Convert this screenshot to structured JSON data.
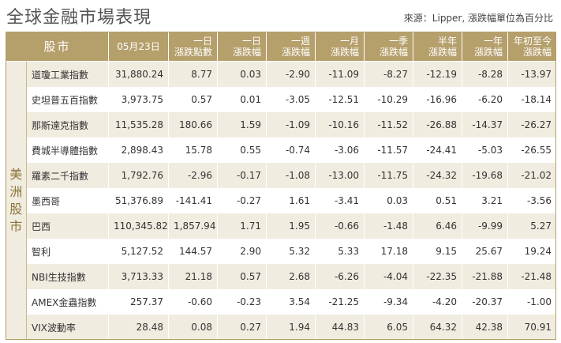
{
  "title": "全球金融市場表現",
  "source": "來源：Lipper, 漲跌幅單位為百分比",
  "headers": {
    "name": "股市",
    "date": "05月23日",
    "c1": [
      "一日",
      "漲跌點數"
    ],
    "c2": [
      "一日",
      "漲跌幅"
    ],
    "c3": [
      "一週",
      "漲跌幅"
    ],
    "c4": [
      "一月",
      "漲跌幅"
    ],
    "c5": [
      "一季",
      "漲跌幅"
    ],
    "c6": [
      "半年",
      "漲跌幅"
    ],
    "c7": [
      "一年",
      "漲跌幅"
    ],
    "c8": [
      "年初至今",
      "漲跌幅"
    ]
  },
  "region": [
    "美",
    "洲",
    "股",
    "市"
  ],
  "rows": [
    [
      "道瓊工業指數",
      "31,880.24",
      "8.77",
      "0.03",
      "-2.90",
      "-11.09",
      "-8.27",
      "-12.19",
      "-8.28",
      "-13.97"
    ],
    [
      "史坦普五百指數",
      "3,973.75",
      "0.57",
      "0.01",
      "-3.05",
      "-12.51",
      "-10.29",
      "-16.96",
      "-6.20",
      "-18.14"
    ],
    [
      "那斯達克指數",
      "11,535.28",
      "180.66",
      "1.59",
      "-1.09",
      "-10.16",
      "-11.52",
      "-26.88",
      "-14.37",
      "-26.27"
    ],
    [
      "費城半導體指數",
      "2,898.43",
      "15.78",
      "0.55",
      "-0.74",
      "-3.06",
      "-11.57",
      "-24.41",
      "-5.03",
      "-26.55"
    ],
    [
      "羅素二千指數",
      "1,792.76",
      "-2.96",
      "-0.17",
      "-1.08",
      "-13.00",
      "-11.75",
      "-24.32",
      "-19.68",
      "-21.02"
    ],
    [
      "墨西哥",
      "51,376.89",
      "-141.41",
      "-0.27",
      "1.61",
      "-3.41",
      "0.03",
      "0.51",
      "3.21",
      "-3.56"
    ],
    [
      "巴西",
      "110,345.82",
      "1,857.94",
      "1.71",
      "1.95",
      "-0.66",
      "-1.48",
      "6.46",
      "-9.99",
      "5.27"
    ],
    [
      "智利",
      "5,127.52",
      "144.57",
      "2.90",
      "5.32",
      "5.33",
      "17.18",
      "9.15",
      "25.67",
      "19.24"
    ],
    [
      "NBI生技指數",
      "3,713.33",
      "21.18",
      "0.57",
      "2.68",
      "-6.26",
      "-4.04",
      "-22.35",
      "-21.88",
      "-21.48"
    ],
    [
      "AMEX金蟲指數",
      "257.37",
      "-0.60",
      "-0.23",
      "3.54",
      "-21.25",
      "-9.34",
      "-4.20",
      "-20.37",
      "-1.00"
    ],
    [
      "VIX波動率",
      "28.48",
      "0.08",
      "0.27",
      "1.94",
      "44.83",
      "6.05",
      "64.32",
      "42.38",
      "70.91"
    ]
  ]
}
